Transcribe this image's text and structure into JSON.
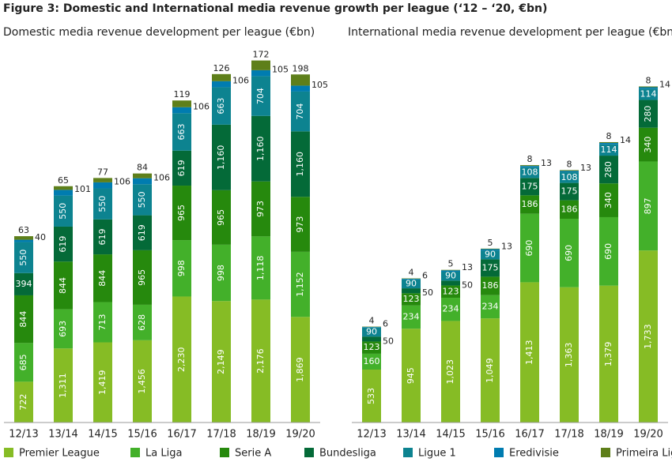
{
  "title": "Figure 3: Domestic and International media revenue growth per league (‘12 – ‘20, €bn)",
  "chart_data": [
    {
      "type": "stacked_bar",
      "title": "Domestic media revenue development per league (€bn)",
      "categories": [
        "12/13",
        "13/14",
        "14/15",
        "15/16",
        "16/17",
        "17/18",
        "18/19",
        "19/20"
      ],
      "ylim": [
        0,
        6500
      ],
      "series": [
        {
          "name": "Premier League",
          "color": "#86BC25",
          "values": [
            722,
            1311,
            1419,
            1456,
            2230,
            2149,
            2176,
            1869
          ],
          "value_labels": [
            "722",
            "1,311",
            "1,419",
            "1,456",
            "2,230",
            "2,149",
            "2,176",
            "1,869"
          ]
        },
        {
          "name": "La Liga",
          "color": "#43B02A",
          "values": [
            685,
            693,
            713,
            628,
            998,
            998,
            1118,
            1152
          ],
          "value_labels": [
            "685",
            "693",
            "713",
            "628",
            "998",
            "998",
            "1,118",
            "1,152"
          ]
        },
        {
          "name": "Serie A",
          "color": "#26890D",
          "values": [
            844,
            844,
            844,
            965,
            965,
            965,
            973,
            973
          ],
          "value_labels": [
            "844",
            "844",
            "844",
            "965",
            "965",
            "965",
            "973",
            "973"
          ]
        },
        {
          "name": "Bundesliga",
          "color": "#046A38",
          "values": [
            394,
            619,
            619,
            619,
            619,
            1160,
            1160,
            1160
          ],
          "value_labels": [
            "394",
            "619",
            "619",
            "619",
            "619",
            "1,160",
            "1,160",
            "1,160"
          ]
        },
        {
          "name": "Ligue 1",
          "color": "#0D8390",
          "values": [
            550,
            550,
            550,
            550,
            663,
            663,
            704,
            704
          ],
          "value_labels": [
            "550",
            "550",
            "550",
            "550",
            "663",
            "663",
            "704",
            "704"
          ]
        },
        {
          "name": "Eredivisie",
          "color": "#007CB0",
          "values": [
            40,
            101,
            106,
            106,
            106,
            106,
            105,
            105
          ],
          "value_labels": [
            "40",
            "101",
            "106",
            "106",
            "106",
            "106",
            "105",
            "105"
          ]
        },
        {
          "name": "Primeira Liga",
          "color": "#5E7F1A",
          "values": [
            63,
            65,
            77,
            84,
            119,
            126,
            172,
            198
          ],
          "value_labels": [
            "63",
            "65",
            "77",
            "84",
            "119",
            "126",
            "172",
            "198"
          ]
        }
      ]
    },
    {
      "type": "stacked_bar",
      "title": "International media revenue development per league (€bn)",
      "categories": [
        "12/13",
        "13/14",
        "14/15",
        "15/16",
        "16/17",
        "17/18",
        "18/19",
        "19/20"
      ],
      "ylim": [
        0,
        3700
      ],
      "series": [
        {
          "name": "Premier League",
          "color": "#86BC25",
          "values": [
            533,
            945,
            1023,
            1049,
            1413,
            1363,
            1379,
            1733
          ],
          "value_labels": [
            "533",
            "945",
            "1,023",
            "1,049",
            "1,413",
            "1,363",
            "1,379",
            "1,733"
          ]
        },
        {
          "name": "La Liga",
          "color": "#43B02A",
          "values": [
            160,
            234,
            234,
            234,
            690,
            690,
            690,
            897
          ],
          "value_labels": [
            "160",
            "234",
            "234",
            "234",
            "690",
            "690",
            "690",
            "897"
          ]
        },
        {
          "name": "Serie A",
          "color": "#26890D",
          "values": [
            123,
            123,
            123,
            186,
            186,
            186,
            340,
            340
          ],
          "value_labels": [
            "123",
            "123",
            "123",
            "186",
            "186",
            "186",
            "340",
            "340"
          ]
        },
        {
          "name": "Bundesliga",
          "color": "#046A38",
          "values": [
            50,
            50,
            50,
            175,
            175,
            175,
            280,
            280
          ],
          "value_labels": [
            "50",
            "50",
            "50",
            "175",
            "175",
            "175",
            "280",
            "280"
          ]
        },
        {
          "name": "Ligue 1",
          "color": "#0D8390",
          "values": [
            90,
            90,
            90,
            90,
            108,
            108,
            114,
            114
          ],
          "value_labels": [
            "90",
            "90",
            "90",
            "90",
            "108",
            "108",
            "114",
            "114"
          ]
        },
        {
          "name": "Eredivisie",
          "color": "#007CB0",
          "values": [
            6,
            6,
            13,
            13,
            13,
            13,
            14,
            14
          ],
          "value_labels": [
            "6",
            "6",
            "13",
            "13",
            "13",
            "13",
            "14",
            "14"
          ]
        },
        {
          "name": "Primeira Liga",
          "color": "#5E7F1A",
          "values": [
            4,
            4,
            5,
            5,
            8,
            8,
            8,
            8
          ],
          "value_labels": [
            "4",
            "4",
            "5",
            "5",
            "8",
            "8",
            "8",
            "8"
          ]
        }
      ]
    }
  ]
}
